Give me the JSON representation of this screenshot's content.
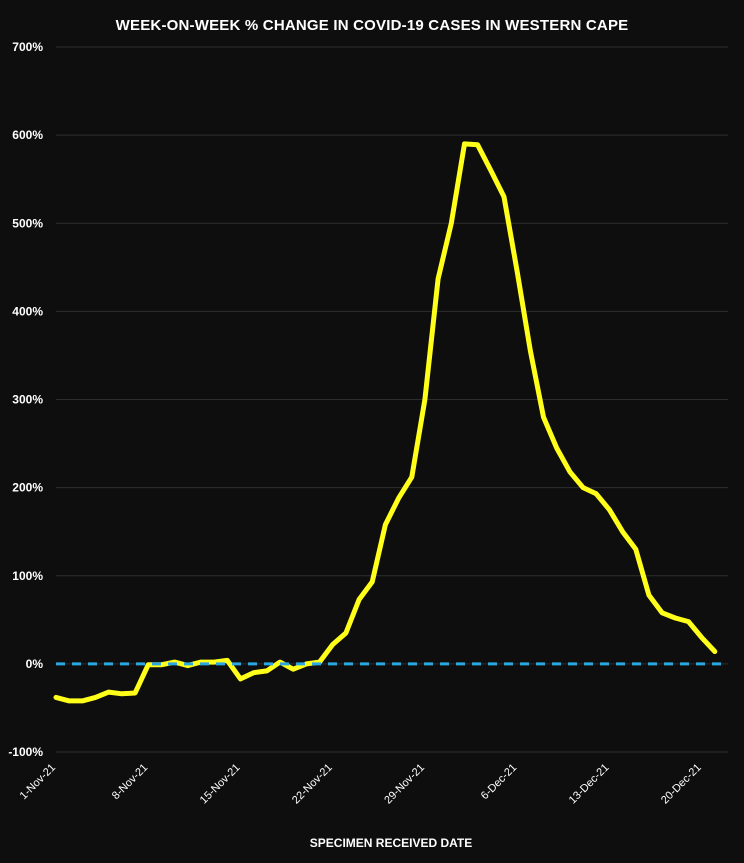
{
  "chart_data": {
    "type": "line",
    "title": "WEEK-ON-WEEK % CHANGE IN COVID-19 CASES IN WESTERN CAPE",
    "xlabel": "SPECIMEN RECEIVED DATE",
    "ylabel": "",
    "ylim": [
      -100,
      700
    ],
    "yticks": [
      "-100%",
      "0%",
      "100%",
      "200%",
      "300%",
      "400%",
      "500%",
      "600%",
      "700%"
    ],
    "ytick_values": [
      -100,
      0,
      100,
      200,
      300,
      400,
      500,
      600,
      700
    ],
    "xtick_labels": [
      "1-Nov-21",
      "8-Nov-21",
      "15-Nov-21",
      "22-Nov-21",
      "29-Nov-21",
      "6-Dec-21",
      "13-Dec-21",
      "20-Dec-21"
    ],
    "xtick_days": [
      0,
      7,
      14,
      21,
      28,
      35,
      42,
      49
    ],
    "x_start_label": "1-Nov-21",
    "grid": "horizontal",
    "series": [
      {
        "color": "#ffff1a",
        "x": [
          0,
          1,
          2,
          3,
          4,
          5,
          6,
          7,
          8,
          9,
          10,
          11,
          12,
          13,
          14,
          15,
          16,
          17,
          18,
          19,
          20,
          21,
          22,
          23,
          24,
          25,
          26,
          27,
          28,
          29,
          30,
          31,
          32,
          33,
          34,
          35,
          36,
          37,
          38,
          39,
          40,
          41,
          42,
          43,
          44,
          45,
          46,
          47,
          48,
          49,
          50,
          51
        ],
        "values": [
          -38,
          -42,
          -42,
          -38,
          -32,
          -34,
          -33,
          -1,
          -1,
          2,
          -2,
          2,
          2,
          4,
          -17,
          -10,
          -8,
          2,
          -6,
          0,
          2,
          22,
          35,
          73,
          93,
          158,
          188,
          212,
          300,
          437,
          500,
          590,
          589,
          560,
          530,
          445,
          355,
          280,
          245,
          218,
          200,
          193,
          175,
          150,
          130,
          78,
          58,
          52,
          48,
          30,
          14,
          null
        ],
        "style": "solid"
      },
      {
        "color": "#2aa7e0",
        "x": [
          0,
          51
        ],
        "values": [
          0,
          0
        ],
        "style": "dashed"
      }
    ]
  }
}
